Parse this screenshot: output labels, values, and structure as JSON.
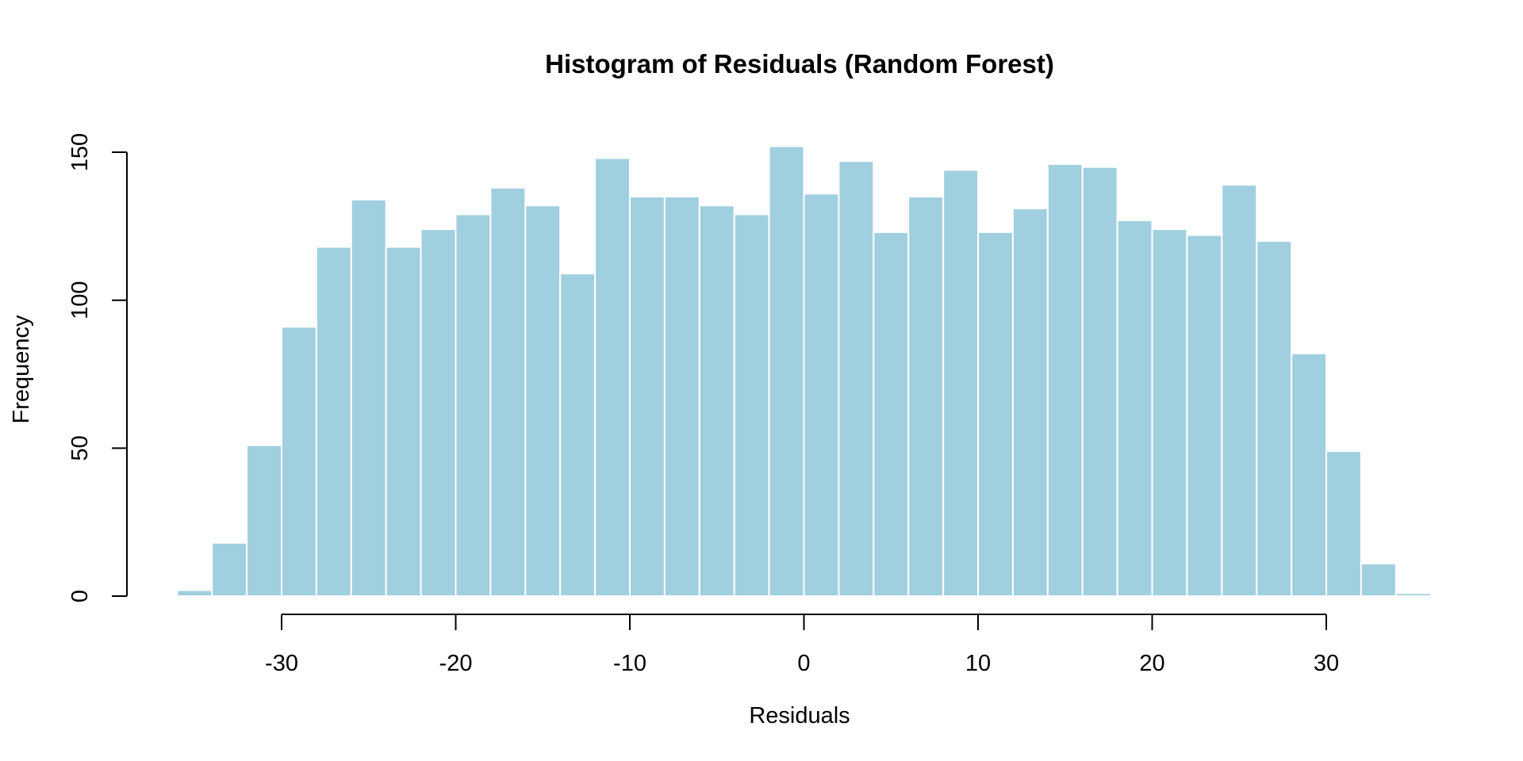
{
  "chart_data": {
    "type": "bar",
    "subtype": "histogram",
    "title": "Histogram of Residuals (Random Forest)",
    "xlabel": "Residuals",
    "ylabel": "Frequency",
    "bin_width": 2,
    "bin_starts": [
      -36,
      -34,
      -32,
      -30,
      -28,
      -26,
      -24,
      -22,
      -20,
      -18,
      -16,
      -14,
      -12,
      -10,
      -8,
      -6,
      -4,
      -2,
      0,
      2,
      4,
      6,
      8,
      10,
      12,
      14,
      16,
      18,
      20,
      22,
      24,
      26,
      28,
      30,
      32,
      34
    ],
    "values": [
      2,
      18,
      51,
      91,
      118,
      134,
      118,
      124,
      129,
      138,
      132,
      109,
      148,
      135,
      135,
      132,
      129,
      152,
      136,
      147,
      123,
      135,
      144,
      123,
      131,
      146,
      145,
      127,
      124,
      122,
      139,
      120,
      82,
      49,
      11,
      1
    ],
    "x_ticks": [
      -30,
      -20,
      -10,
      0,
      10,
      20,
      30
    ],
    "x_tick_labels": [
      "-30",
      "-20",
      "-10",
      "0",
      "10",
      "20",
      "30"
    ],
    "y_ticks": [
      0,
      50,
      100,
      150
    ],
    "y_tick_labels": [
      "0",
      "50",
      "100",
      "150"
    ],
    "xlim": [
      -36,
      36
    ],
    "ylim": [
      0,
      150
    ],
    "grid": false,
    "colors": {
      "bar_fill": "#a0cfe0",
      "bar_border": "#ffffff",
      "axis": "#000000"
    }
  }
}
